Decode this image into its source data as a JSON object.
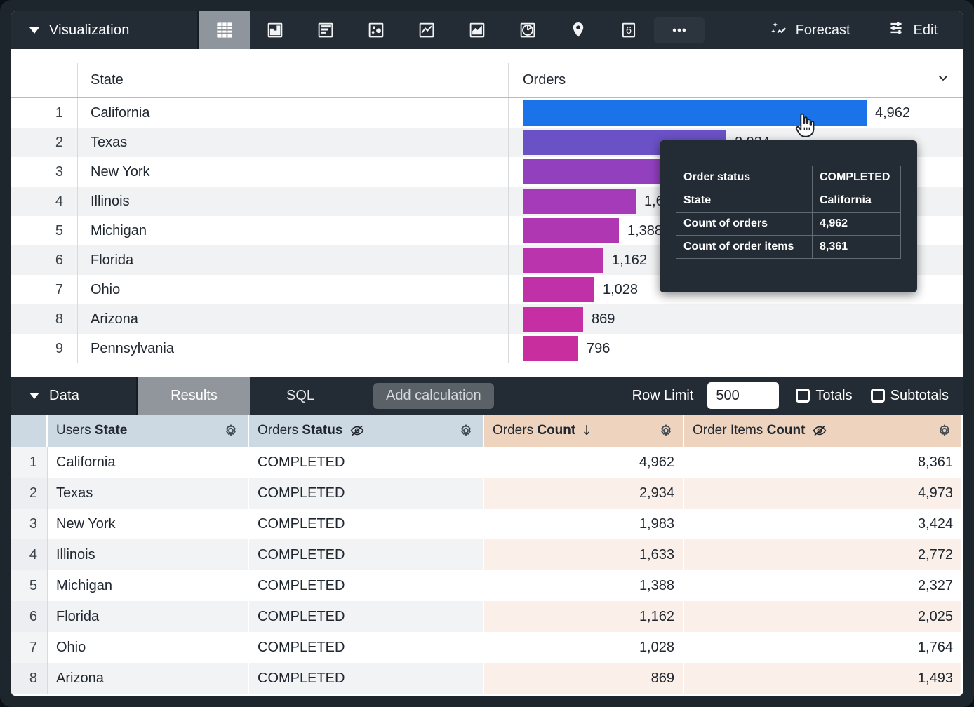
{
  "colors": {
    "toolbar_bg": "#232c34",
    "selected_tile_bg": "#8e959c",
    "dimension_header_bg": "#cdd9e2",
    "measure_header_bg": "#eed4bf",
    "tooltip_bg": "#232c34",
    "bar_max_color": "#1a73e8"
  },
  "viz_toolbar": {
    "title": "Visualization",
    "icons": [
      {
        "name": "table",
        "selected": true
      },
      {
        "name": "column-chart",
        "selected": false
      },
      {
        "name": "bar-chart",
        "selected": false
      },
      {
        "name": "scatter-chart",
        "selected": false
      },
      {
        "name": "line-chart",
        "selected": false
      },
      {
        "name": "area-chart",
        "selected": false
      },
      {
        "name": "pie-chart",
        "selected": false
      },
      {
        "name": "map",
        "selected": false
      },
      {
        "name": "single-value",
        "selected": false
      },
      {
        "name": "more",
        "selected": false
      }
    ],
    "forecast_label": "Forecast",
    "edit_label": "Edit"
  },
  "viz_table": {
    "state_header": "State",
    "orders_header": "Orders",
    "max_value": 4962,
    "rows": [
      {
        "n": "1",
        "state": "California",
        "value": "4,962",
        "value_num": 4962,
        "color": "#1a73e8"
      },
      {
        "n": "2",
        "state": "Texas",
        "value": "2,934",
        "value_num": 2934,
        "color": "#6b51c6"
      },
      {
        "n": "3",
        "state": "New York",
        "value": "1,983",
        "value_num": 1983,
        "color": "#9340bf"
      },
      {
        "n": "4",
        "state": "Illinois",
        "value": "1,633",
        "value_num": 1633,
        "color": "#a53bb8"
      },
      {
        "n": "5",
        "state": "Michigan",
        "value": "1,388",
        "value_num": 1388,
        "color": "#b037b2"
      },
      {
        "n": "6",
        "state": "Florida",
        "value": "1,162",
        "value_num": 1162,
        "color": "#b934ad"
      },
      {
        "n": "7",
        "state": "Ohio",
        "value": "1,028",
        "value_num": 1028,
        "color": "#c031a7"
      },
      {
        "n": "8",
        "state": "Arizona",
        "value": "869",
        "value_num": 869,
        "color": "#c52fa3"
      },
      {
        "n": "9",
        "state": "Pennsylvania",
        "value": "796",
        "value_num": 796,
        "color": "#c92e9e"
      }
    ]
  },
  "tooltip": {
    "rows": [
      {
        "label": "Order status",
        "value": "COMPLETED"
      },
      {
        "label": "State",
        "value": "California"
      },
      {
        "label": "Count of orders",
        "value": "4,962"
      },
      {
        "label": "Count of order items",
        "value": "8,361"
      }
    ]
  },
  "data_toolbar": {
    "title": "Data",
    "tabs": [
      "Results",
      "SQL"
    ],
    "active_tab": "Results",
    "add_calculation_label": "Add calculation",
    "row_limit_label": "Row Limit",
    "row_limit_value": "500",
    "totals_label": "Totals",
    "totals_checked": false,
    "subtotals_label": "Subtotals",
    "subtotals_checked": false
  },
  "data_table": {
    "columns": [
      {
        "group": "Users",
        "field": "State",
        "type": "dimension",
        "hidden": false,
        "sorted": null
      },
      {
        "group": "Orders",
        "field": "Status",
        "type": "dimension",
        "hidden": true,
        "sorted": null
      },
      {
        "group": "Orders",
        "field": "Count",
        "type": "measure",
        "hidden": false,
        "sorted": "desc"
      },
      {
        "group": "Order Items",
        "field": "Count",
        "type": "measure",
        "hidden": true,
        "sorted": null
      }
    ],
    "rows": [
      {
        "n": "1",
        "state": "California",
        "status": "COMPLETED",
        "orders_count": "4,962",
        "order_items_count": "8,361"
      },
      {
        "n": "2",
        "state": "Texas",
        "status": "COMPLETED",
        "orders_count": "2,934",
        "order_items_count": "4,973"
      },
      {
        "n": "3",
        "state": "New York",
        "status": "COMPLETED",
        "orders_count": "1,983",
        "order_items_count": "3,424"
      },
      {
        "n": "4",
        "state": "Illinois",
        "status": "COMPLETED",
        "orders_count": "1,633",
        "order_items_count": "2,772"
      },
      {
        "n": "5",
        "state": "Michigan",
        "status": "COMPLETED",
        "orders_count": "1,388",
        "order_items_count": "2,327"
      },
      {
        "n": "6",
        "state": "Florida",
        "status": "COMPLETED",
        "orders_count": "1,162",
        "order_items_count": "2,025"
      },
      {
        "n": "7",
        "state": "Ohio",
        "status": "COMPLETED",
        "orders_count": "1,028",
        "order_items_count": "1,764"
      },
      {
        "n": "8",
        "state": "Arizona",
        "status": "COMPLETED",
        "orders_count": "869",
        "order_items_count": "1,493"
      }
    ]
  }
}
